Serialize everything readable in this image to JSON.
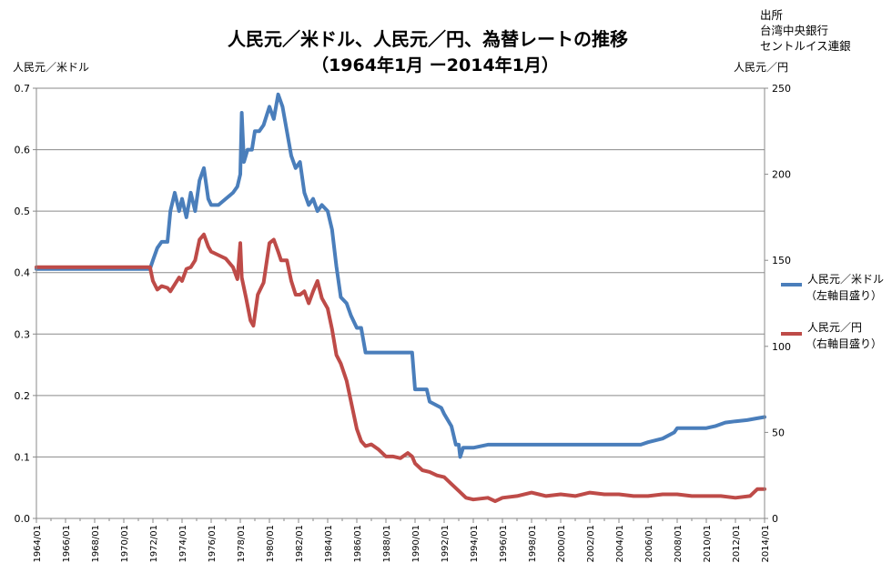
{
  "chart_data": {
    "type": "line",
    "title": "人民元／米ドル、人民元／円、為替レートの推移",
    "subtitle": "（1964年1月 ー2014年1月）",
    "source_label": "出所",
    "source_lines": [
      "台湾中央銀行",
      "セントルイス連銀"
    ],
    "ylabel_left": "人民元／米ドル",
    "ylabel_right": "人民元／円",
    "ylim_left": [
      0,
      0.7
    ],
    "ylim_right": [
      0,
      250
    ],
    "yticks_left": [
      "0.0",
      "0.1",
      "0.2",
      "0.3",
      "0.4",
      "0.5",
      "0.6",
      "0.7"
    ],
    "yticks_right": [
      "0",
      "50",
      "100",
      "150",
      "200",
      "250"
    ],
    "xticks": [
      "1964/01",
      "1966/01",
      "1968/01",
      "1970/01",
      "1972/01",
      "1974/01",
      "1976/01",
      "1978/01",
      "1980/01",
      "1982/01",
      "1984/01",
      "1986/01",
      "1988/01",
      "1990/01",
      "1992/01",
      "1994/01",
      "1996/01",
      "1998/01",
      "2000/01",
      "2002/01",
      "2004/01",
      "2006/01",
      "2008/01",
      "2010/01",
      "2012/01",
      "2014/01"
    ],
    "grid": true,
    "legend_position": "right",
    "series": [
      {
        "name": "人民元／米ドル",
        "name_line2": "（左軸目盛り）",
        "axis": "left",
        "color": "#4a7ebb",
        "points": [
          [
            1964.0,
            0.406
          ],
          [
            1971.8,
            0.406
          ],
          [
            1972.0,
            0.42
          ],
          [
            1972.3,
            0.44
          ],
          [
            1972.6,
            0.45
          ],
          [
            1973.0,
            0.45
          ],
          [
            1973.2,
            0.5
          ],
          [
            1973.5,
            0.53
          ],
          [
            1973.8,
            0.5
          ],
          [
            1974.0,
            0.52
          ],
          [
            1974.3,
            0.49
          ],
          [
            1974.6,
            0.53
          ],
          [
            1974.9,
            0.5
          ],
          [
            1975.2,
            0.55
          ],
          [
            1975.5,
            0.57
          ],
          [
            1975.8,
            0.52
          ],
          [
            1976.0,
            0.51
          ],
          [
            1976.5,
            0.51
          ],
          [
            1977.0,
            0.52
          ],
          [
            1977.5,
            0.53
          ],
          [
            1977.8,
            0.54
          ],
          [
            1978.0,
            0.56
          ],
          [
            1978.1,
            0.66
          ],
          [
            1978.25,
            0.58
          ],
          [
            1978.5,
            0.6
          ],
          [
            1978.8,
            0.6
          ],
          [
            1979.0,
            0.63
          ],
          [
            1979.3,
            0.63
          ],
          [
            1979.6,
            0.64
          ],
          [
            1980.0,
            0.67
          ],
          [
            1980.3,
            0.65
          ],
          [
            1980.6,
            0.69
          ],
          [
            1980.9,
            0.67
          ],
          [
            1981.2,
            0.63
          ],
          [
            1981.5,
            0.59
          ],
          [
            1981.8,
            0.57
          ],
          [
            1982.1,
            0.58
          ],
          [
            1982.4,
            0.53
          ],
          [
            1982.7,
            0.51
          ],
          [
            1983.0,
            0.52
          ],
          [
            1983.3,
            0.5
          ],
          [
            1983.6,
            0.51
          ],
          [
            1984.0,
            0.5
          ],
          [
            1984.3,
            0.47
          ],
          [
            1984.6,
            0.41
          ],
          [
            1984.9,
            0.36
          ],
          [
            1985.3,
            0.35
          ],
          [
            1985.6,
            0.33
          ],
          [
            1986.0,
            0.31
          ],
          [
            1986.3,
            0.31
          ],
          [
            1986.6,
            0.27
          ],
          [
            1988.0,
            0.27
          ],
          [
            1989.0,
            0.27
          ],
          [
            1989.8,
            0.27
          ],
          [
            1990.0,
            0.21
          ],
          [
            1990.8,
            0.21
          ],
          [
            1991.0,
            0.19
          ],
          [
            1991.8,
            0.18
          ],
          [
            1992.0,
            0.17
          ],
          [
            1992.5,
            0.15
          ],
          [
            1992.8,
            0.12
          ],
          [
            1993.0,
            0.12
          ],
          [
            1993.1,
            0.1
          ],
          [
            1993.3,
            0.115
          ],
          [
            1994.0,
            0.115
          ],
          [
            1995.0,
            0.12
          ],
          [
            1996.0,
            0.12
          ],
          [
            1998.0,
            0.12
          ],
          [
            2000.0,
            0.12
          ],
          [
            2002.0,
            0.12
          ],
          [
            2004.0,
            0.12
          ],
          [
            2005.5,
            0.12
          ],
          [
            2006.0,
            0.124
          ],
          [
            2007.0,
            0.13
          ],
          [
            2007.8,
            0.14
          ],
          [
            2008.0,
            0.147
          ],
          [
            2009.0,
            0.147
          ],
          [
            2010.0,
            0.147
          ],
          [
            2010.6,
            0.15
          ],
          [
            2011.3,
            0.156
          ],
          [
            2012.0,
            0.158
          ],
          [
            2012.8,
            0.16
          ],
          [
            2013.5,
            0.163
          ],
          [
            2014.0,
            0.165
          ]
        ]
      },
      {
        "name": "人民元／円",
        "name_line2": "（右軸目盛り）",
        "axis": "right",
        "color": "#be4b48",
        "points": [
          [
            1964.0,
            146
          ],
          [
            1971.8,
            146
          ],
          [
            1972.0,
            138
          ],
          [
            1972.3,
            133
          ],
          [
            1972.6,
            135
          ],
          [
            1973.0,
            134
          ],
          [
            1973.2,
            132
          ],
          [
            1973.5,
            136
          ],
          [
            1973.8,
            140
          ],
          [
            1974.0,
            138
          ],
          [
            1974.3,
            145
          ],
          [
            1974.6,
            146
          ],
          [
            1974.9,
            150
          ],
          [
            1975.2,
            162
          ],
          [
            1975.5,
            165
          ],
          [
            1975.8,
            158
          ],
          [
            1976.0,
            155
          ],
          [
            1976.5,
            153
          ],
          [
            1977.0,
            151
          ],
          [
            1977.5,
            146
          ],
          [
            1977.8,
            139
          ],
          [
            1978.0,
            160
          ],
          [
            1978.1,
            140
          ],
          [
            1978.4,
            128
          ],
          [
            1978.7,
            115
          ],
          [
            1978.9,
            112
          ],
          [
            1979.2,
            130
          ],
          [
            1979.6,
            137
          ],
          [
            1980.0,
            160
          ],
          [
            1980.3,
            162
          ],
          [
            1980.6,
            155
          ],
          [
            1980.8,
            150
          ],
          [
            1981.2,
            150
          ],
          [
            1981.5,
            138
          ],
          [
            1981.8,
            130
          ],
          [
            1982.1,
            130
          ],
          [
            1982.4,
            132
          ],
          [
            1982.7,
            125
          ],
          [
            1983.0,
            132
          ],
          [
            1983.3,
            138
          ],
          [
            1983.6,
            128
          ],
          [
            1984.0,
            122
          ],
          [
            1984.3,
            110
          ],
          [
            1984.6,
            95
          ],
          [
            1984.9,
            90
          ],
          [
            1985.3,
            80
          ],
          [
            1985.6,
            68
          ],
          [
            1986.0,
            52
          ],
          [
            1986.3,
            45
          ],
          [
            1986.6,
            42
          ],
          [
            1987.0,
            43
          ],
          [
            1987.5,
            40
          ],
          [
            1988.0,
            36
          ],
          [
            1988.5,
            36
          ],
          [
            1989.0,
            35
          ],
          [
            1989.5,
            38
          ],
          [
            1989.8,
            36
          ],
          [
            1990.0,
            32
          ],
          [
            1990.5,
            28
          ],
          [
            1991.0,
            27
          ],
          [
            1991.5,
            25
          ],
          [
            1992.0,
            24
          ],
          [
            1992.5,
            20
          ],
          [
            1993.0,
            16
          ],
          [
            1993.5,
            12
          ],
          [
            1994.0,
            11
          ],
          [
            1995.0,
            12
          ],
          [
            1995.5,
            10
          ],
          [
            1996.0,
            12
          ],
          [
            1997.0,
            13
          ],
          [
            1998.0,
            15
          ],
          [
            1998.5,
            14
          ],
          [
            1999.0,
            13
          ],
          [
            2000.0,
            14
          ],
          [
            2001.0,
            13
          ],
          [
            2002.0,
            15
          ],
          [
            2003.0,
            14
          ],
          [
            2004.0,
            14
          ],
          [
            2005.0,
            13
          ],
          [
            2006.0,
            13
          ],
          [
            2007.0,
            14
          ],
          [
            2008.0,
            14
          ],
          [
            2009.0,
            13
          ],
          [
            2010.0,
            13
          ],
          [
            2011.0,
            13
          ],
          [
            2012.0,
            12
          ],
          [
            2013.0,
            13
          ],
          [
            2013.5,
            17
          ],
          [
            2014.0,
            17
          ]
        ]
      }
    ]
  }
}
